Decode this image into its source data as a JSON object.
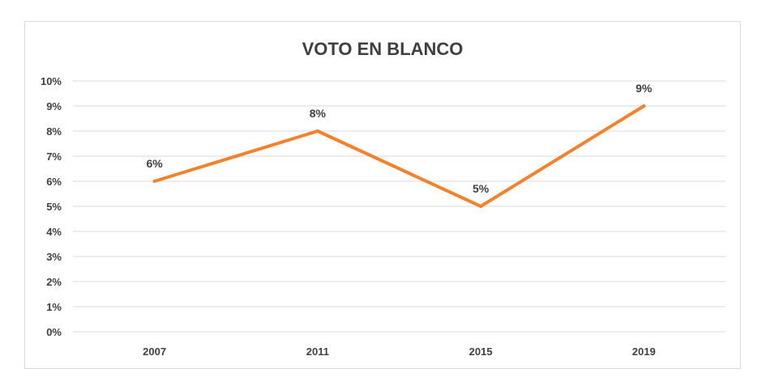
{
  "chart_data": {
    "type": "line",
    "title": "VOTO EN BLANCO",
    "categories": [
      "2007",
      "2011",
      "2015",
      "2019"
    ],
    "series": [
      {
        "values": [
          6,
          8,
          5,
          9
        ],
        "color": "#f5822a"
      }
    ],
    "data_labels": [
      "6%",
      "8%",
      "5%",
      "9%"
    ],
    "y_ticks": [
      "0%",
      "1%",
      "2%",
      "3%",
      "4%",
      "5%",
      "6%",
      "7%",
      "8%",
      "9%",
      "10%"
    ],
    "ylim": [
      0,
      10
    ],
    "grid": true,
    "gridline_color": "#d9d9d9",
    "legend": "none"
  }
}
